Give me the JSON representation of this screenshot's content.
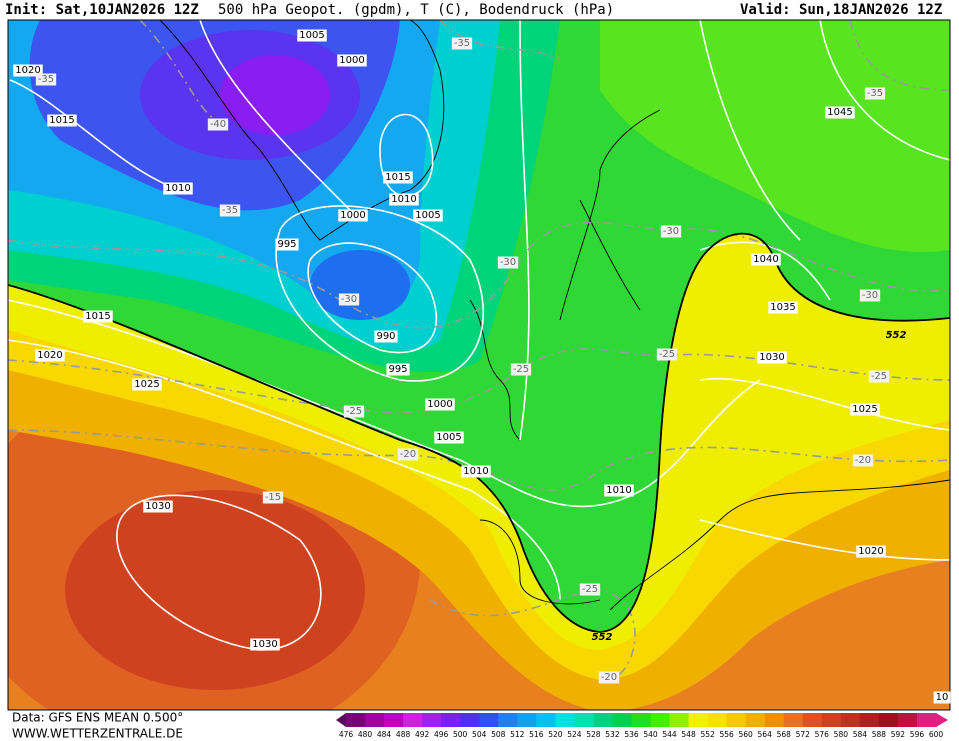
{
  "header": {
    "init": "Init: Sat,10JAN2026 12Z",
    "title": "500 hPa Geopot. (gpdm), T (C), Bodendruck (hPa)",
    "valid": "Valid: Sun,18JAN2026 12Z"
  },
  "map": {
    "isobar_labels": [
      "1005",
      "1000",
      "1020",
      "1015",
      "1010",
      "1015",
      "1010",
      "1000",
      "1005",
      "995",
      "990",
      "995",
      "1000",
      "1005",
      "1010",
      "1015",
      "1020",
      "1025",
      "1030",
      "1030",
      "1010",
      "1045",
      "1040",
      "1035",
      "1030",
      "1025",
      "1020"
    ],
    "temperature_labels": [
      "-35",
      "-35",
      "-40",
      "-35",
      "-30",
      "-30",
      "-30",
      "-35",
      "-30",
      "-25",
      "-25",
      "-25",
      "-25",
      "-20",
      "-20",
      "-15",
      "-25",
      "-20"
    ],
    "contour_552_labels": [
      "552",
      "552"
    ],
    "corner_label": "10"
  },
  "footer": {
    "data": "Data: GFS ENS MEAN 0.500°",
    "site": "WWW.WETTERZENTRALE.DE"
  },
  "colorbar": {
    "labels": [
      476,
      480,
      484,
      488,
      492,
      496,
      500,
      504,
      508,
      512,
      516,
      520,
      524,
      528,
      532,
      536,
      540,
      544,
      548,
      552,
      556,
      560,
      564,
      568,
      572,
      576,
      580,
      584,
      588,
      592,
      596,
      600
    ]
  }
}
